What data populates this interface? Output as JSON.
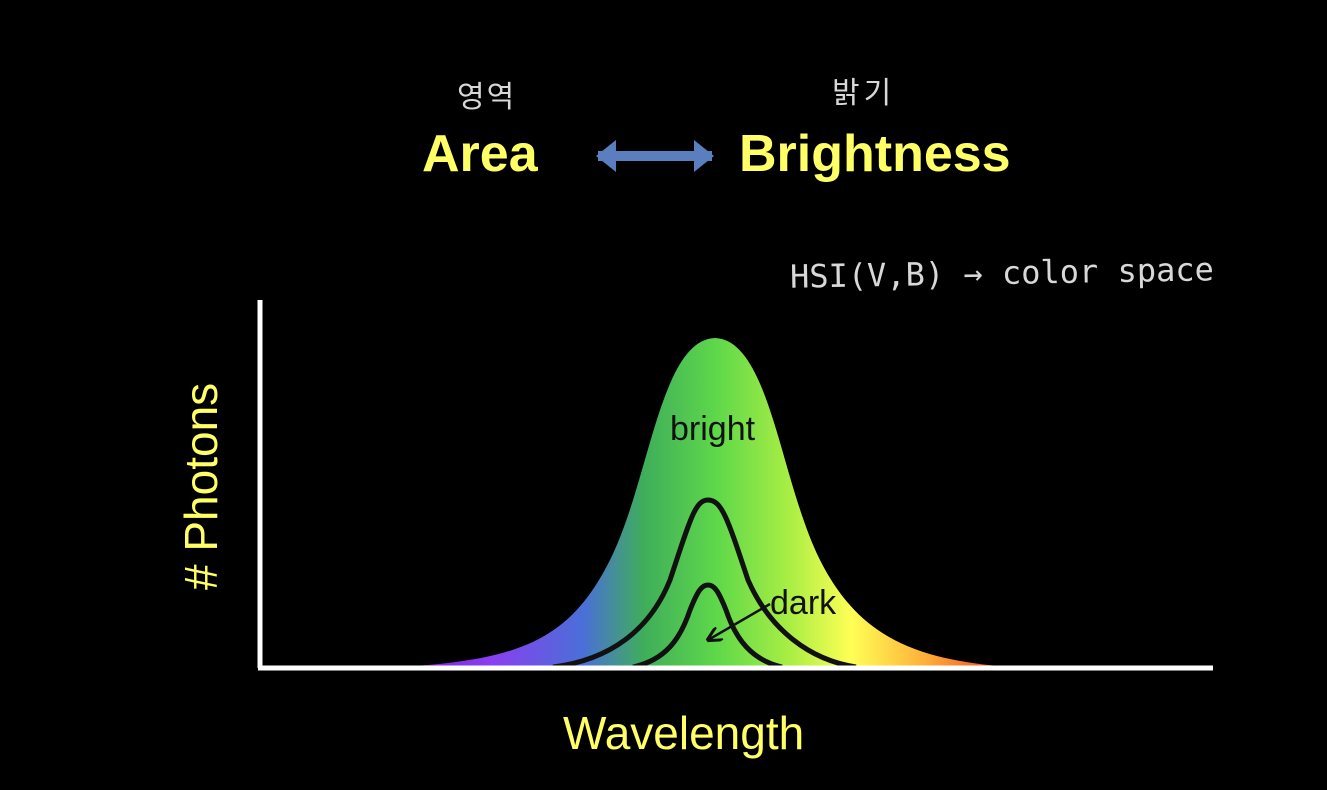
{
  "title": {
    "left_word": "Area",
    "right_word": "Brightness",
    "left_annotation": "영역",
    "right_annotation": "밝기",
    "arrow_color": "#5b7fbe"
  },
  "annotation_note": "HSI(V,B) → color space",
  "diagram": {
    "y_axis_label": "# Photons",
    "x_axis_label": "Wavelength",
    "bright_label": "bright",
    "dark_label": "dark",
    "label_color": "#ffff66",
    "spectrum_colors": [
      "#8a2be2",
      "#4a6fd8",
      "#3fbf4a",
      "#66dd44",
      "#ccee44",
      "#ffee44",
      "#ff5a2a"
    ]
  }
}
